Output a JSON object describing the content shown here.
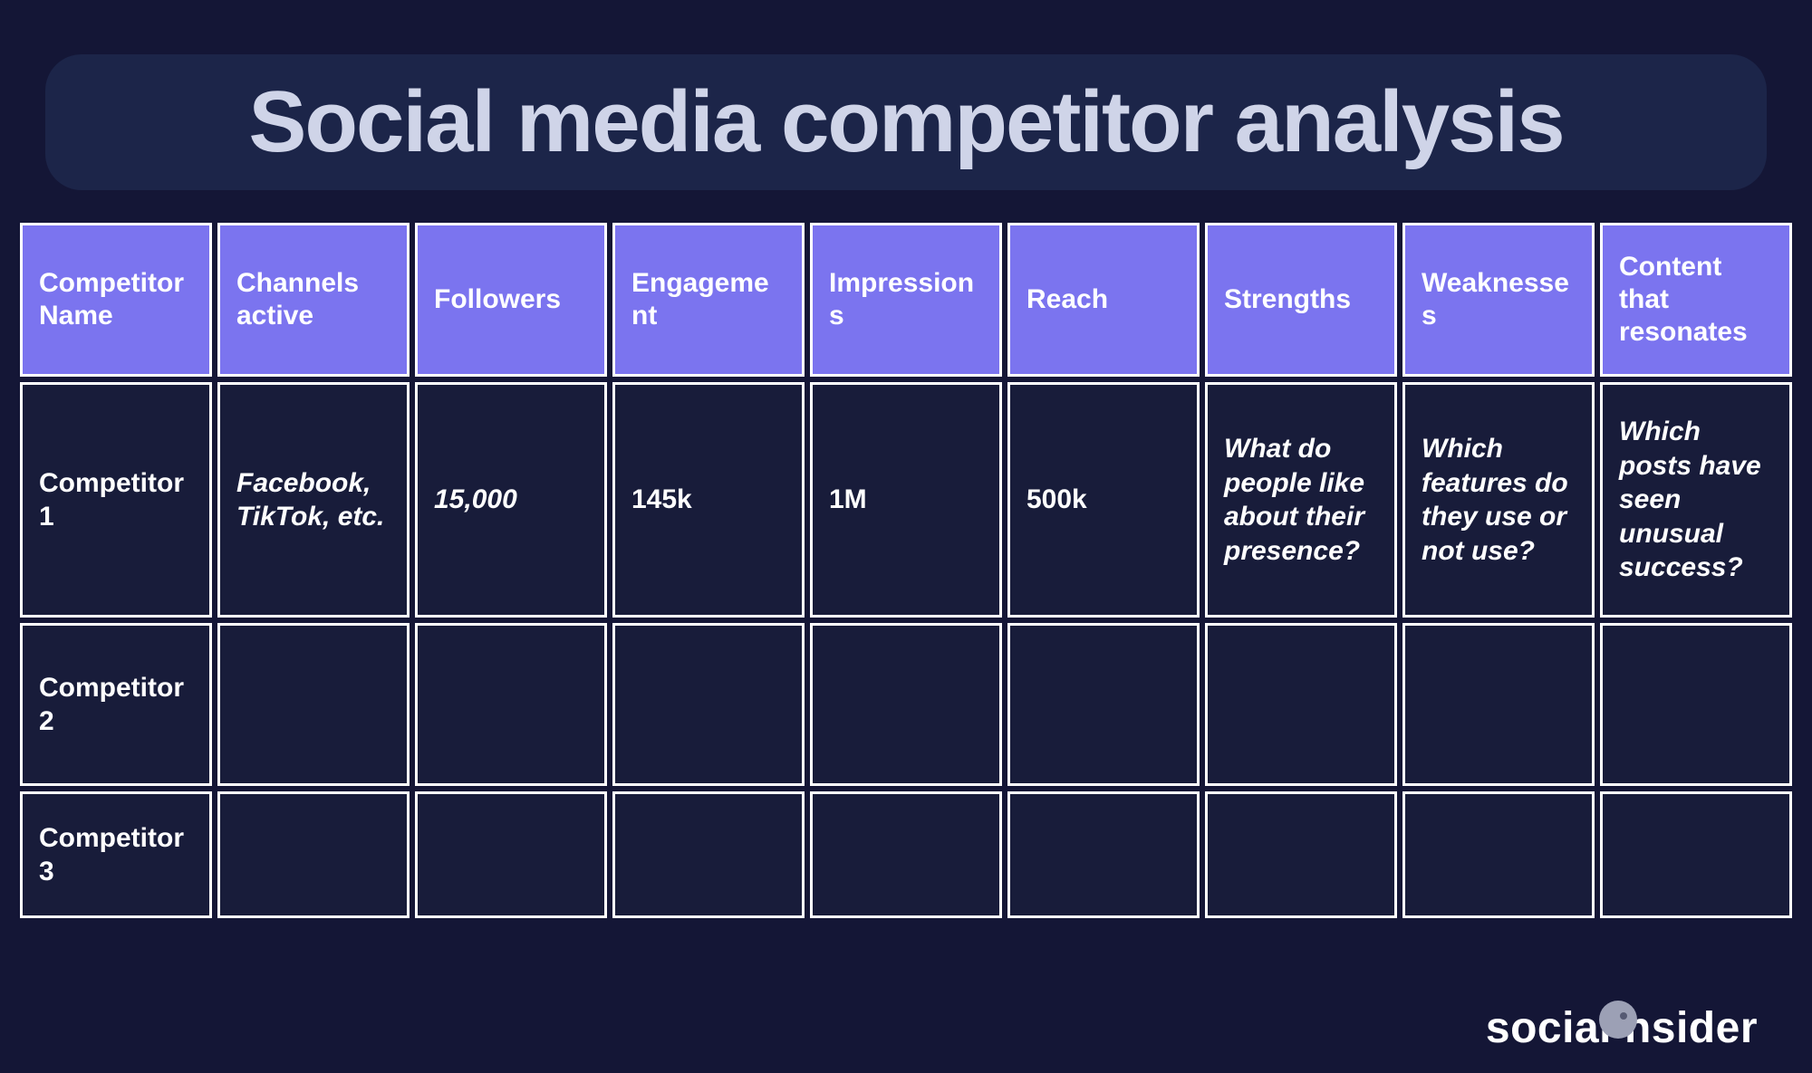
{
  "title": "Social media competitor analysis",
  "brand_part1": "social",
  "brand_part2": "nsider",
  "colors": {
    "page_bg": "#141636",
    "title_bg": "#1c2549",
    "title_color": "#cfd4e8",
    "header_bg": "#7b74ef",
    "header_text": "#ffffff",
    "cell_bg": "#181c3a",
    "cell_text": "#ffffff",
    "cell_border": "#ffffff",
    "brand_text": "#ffffff",
    "brand_dot_bg": "#9ca0b5"
  },
  "table": {
    "columns": [
      "Competitor Name",
      "Channels active",
      "Followers",
      "Engagement",
      "Impressions",
      "Reach",
      "Strengths",
      "Weaknesses",
      "Content that resonates"
    ],
    "col_header_display": [
      "Competitor Name",
      "Channels active",
      "Followers",
      "Engagement",
      "Impressions",
      "Reach",
      "Strengths",
      "Weaknesses",
      "Content that resonates"
    ],
    "rows": [
      {
        "name": "Competitor 1",
        "channels": " Facebook, TikTok, etc.",
        "followers": "15,000",
        "engagement": "145k",
        "impressions": "1M",
        "reach": "500k",
        "strengths": "What do people like about their presence?",
        "weaknesses": "Which features do they use or not use?",
        "content": "Which posts have seen unusual success?"
      },
      {
        "name": "Competitor 2",
        "channels": "",
        "followers": "",
        "engagement": "",
        "impressions": "",
        "reach": "",
        "strengths": "",
        "weaknesses": "",
        "content": ""
      },
      {
        "name": "Competitor 3",
        "channels": "",
        "followers": "",
        "engagement": "",
        "impressions": "",
        "reach": "",
        "strengths": "",
        "weaknesses": "",
        "content": ""
      }
    ],
    "italic_cells": {
      "0": [
        "channels",
        "followers",
        "strengths",
        "weaknesses",
        "content"
      ]
    }
  }
}
